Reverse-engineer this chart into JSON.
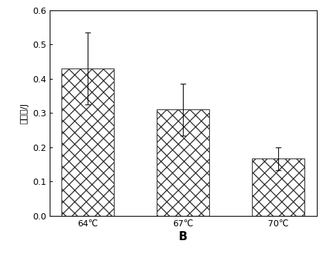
{
  "categories": [
    "64℃",
    "67℃",
    "70℃"
  ],
  "values": [
    0.43,
    0.31,
    0.167
  ],
  "errors": [
    0.105,
    0.075,
    0.033
  ],
  "xlabel": "B",
  "ylabel": "韧刚性/J",
  "ylim": [
    0,
    0.6
  ],
  "yticks": [
    0.0,
    0.1,
    0.2,
    0.3,
    0.4,
    0.5,
    0.6
  ],
  "bar_width": 0.55,
  "hatch": "xx",
  "bar_facecolor": "#ffffff",
  "bar_edgecolor": "#333333",
  "background_color": "#ffffff",
  "axis_fontsize": 10,
  "tick_fontsize": 9,
  "xlabel_fontsize": 12,
  "ylabel_fontsize": 9
}
